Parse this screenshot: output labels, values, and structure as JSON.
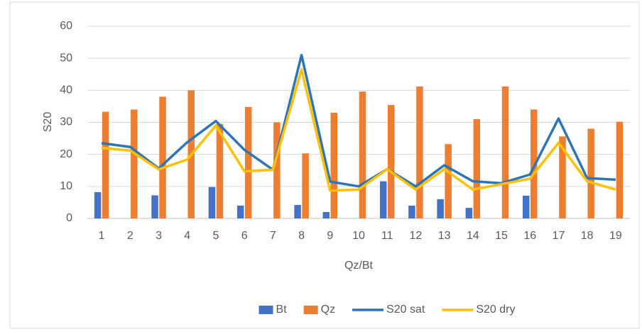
{
  "chart_data": {
    "type": "bar-line",
    "x_label": "Qz/Bt",
    "y_label": "S20",
    "categories": [
      "1",
      "2",
      "3",
      "4",
      "5",
      "6",
      "7",
      "8",
      "9",
      "10",
      "11",
      "12",
      "13",
      "14",
      "15",
      "16",
      "17",
      "18",
      "19"
    ],
    "series": [
      {
        "name": "Bt",
        "type": "bar",
        "color": "#4472c4",
        "values": [
          8.2,
          null,
          7.2,
          null,
          9.8,
          4,
          null,
          4.2,
          2,
          null,
          11.6,
          4,
          6,
          3.3,
          null,
          7.1,
          null,
          null,
          null
        ]
      },
      {
        "name": "Qz",
        "type": "bar",
        "color": "#ed7d31",
        "values": [
          33.3,
          34,
          38,
          40,
          29.5,
          34.8,
          30,
          20.3,
          33,
          39.6,
          35.4,
          41.2,
          23.2,
          31,
          41.2,
          34,
          25.6,
          28,
          30.2
        ]
      },
      {
        "name": "S20 sat",
        "type": "line",
        "color": "#2e75b6",
        "values": [
          23.5,
          22.3,
          15.6,
          23.8,
          30.4,
          21.4,
          15.2,
          51,
          11.5,
          10,
          15.4,
          10,
          16.6,
          11.6,
          11,
          13.7,
          31.2,
          12.6,
          12.1
        ]
      },
      {
        "name": "S20 dry",
        "type": "line",
        "color": "#ffc000",
        "values": [
          22,
          21.2,
          15.3,
          18.4,
          29,
          14.7,
          15.2,
          46.5,
          8.7,
          9,
          15.4,
          9,
          15.4,
          9,
          10.7,
          12.4,
          23.6,
          11.6,
          9
        ]
      }
    ],
    "ylim": [
      0,
      60
    ],
    "yticks": [
      0,
      10,
      20,
      30,
      40,
      50,
      60
    ],
    "grid": true,
    "legend": "bottom"
  }
}
